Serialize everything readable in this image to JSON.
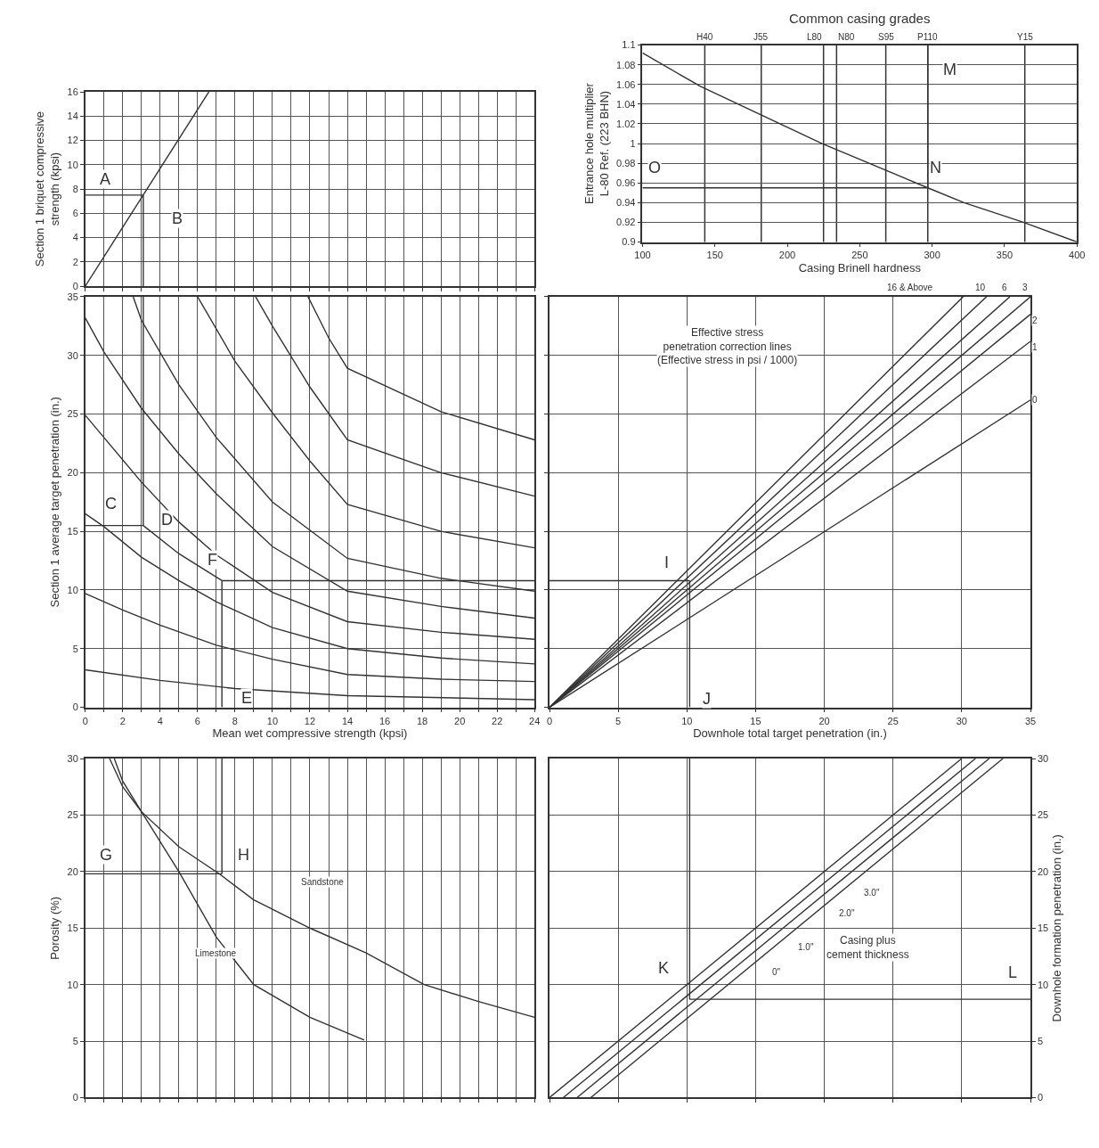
{
  "chart_data": [
    {
      "type": "line",
      "ylabel": "Section 1 briquet compressive\nstrength (kpsi)",
      "xlim": [
        0,
        24
      ],
      "ylim": [
        0,
        16
      ],
      "xticks": [
        0,
        {
          "value": 1,
          "label": null
        },
        2,
        {
          "value": 3,
          "label": null
        },
        4,
        {
          "value": 5,
          "label": null
        },
        6,
        {
          "value": 7,
          "label": null
        },
        8,
        {
          "value": 9,
          "label": null
        },
        10,
        {
          "value": 11,
          "label": null
        },
        12,
        {
          "value": 13,
          "label": null
        },
        14,
        {
          "value": 15,
          "label": null
        },
        16,
        {
          "value": 17,
          "label": null
        },
        18,
        {
          "value": 19,
          "label": null
        },
        20,
        {
          "value": 21,
          "label": null
        },
        22,
        {
          "value": 23,
          "label": null
        },
        24
      ],
      "yticks": [
        0,
        2,
        4,
        6,
        8,
        10,
        12,
        14,
        16
      ],
      "tick_labels": "y",
      "grid": true,
      "series": [
        {
          "color": "#333333",
          "x": [
            0,
            6.6
          ],
          "values": [
            0,
            16
          ]
        },
        {
          "color": "#333333",
          "x": [
            0,
            3.1,
            null,
            3.1,
            3.1
          ],
          "values": [
            7.5,
            7.5,
            null,
            7.5,
            0
          ]
        }
      ],
      "annotations": [
        "A",
        "B"
      ]
    },
    {
      "type": "line",
      "title": "Common casing grades",
      "xlabel": "Casing Brinell hardness",
      "ylabel": "Entrance hole multiplier\nL-80 Ref. (223 BHN)",
      "xlim": [
        100,
        400
      ],
      "ylim": [
        0.9,
        1.1
      ],
      "xticks": [
        100,
        150,
        200,
        250,
        300,
        350,
        400
      ],
      "yticks": [
        0.9,
        0.92,
        0.94,
        0.96,
        0.98,
        1,
        1.02,
        1.04,
        1.06,
        1.08,
        1.1
      ],
      "ref_lines": [
        {
          "axis": "x",
          "value": 143,
          "label": "H40"
        },
        {
          "axis": "x",
          "value": 182,
          "label": "J55"
        },
        {
          "axis": "x",
          "value": 225,
          "label": "L80"
        },
        {
          "axis": "x",
          "value": 234,
          "label": "N80"
        },
        {
          "axis": "x",
          "value": 268,
          "label": "S95"
        },
        {
          "axis": "x",
          "value": 297,
          "label": "P110"
        },
        {
          "axis": "x",
          "value": 364,
          "label": "Y15"
        }
      ],
      "grid": "y",
      "series": [
        {
          "color": "#333333",
          "x": [
            100,
            140,
            224,
            297,
            322,
            363,
            400
          ],
          "values": [
            1.092,
            1.058,
            1.0,
            0.955,
            0.94,
            0.92,
            0.9
          ]
        },
        {
          "color": "#333333",
          "x": [
            297,
            297,
            null,
            297,
            100
          ],
          "values": [
            1.1,
            0.955,
            null,
            0.955,
            0.955
          ]
        }
      ],
      "annotations": [
        "M",
        "N",
        "O"
      ]
    },
    {
      "type": "line",
      "xlabel": "Mean wet compressive strength (kpsi)",
      "ylabel": "Section 1 average target penetration (in.)",
      "xlim": [
        0,
        24
      ],
      "ylim": [
        0,
        35
      ],
      "xticks": [
        0,
        {
          "value": 1,
          "label": null
        },
        2,
        {
          "value": 3,
          "label": null
        },
        4,
        {
          "value": 5,
          "label": null
        },
        6,
        {
          "value": 7,
          "label": null
        },
        8,
        {
          "value": 9,
          "label": null
        },
        10,
        {
          "value": 11,
          "label": null
        },
        12,
        {
          "value": 13,
          "label": null
        },
        14,
        {
          "value": 15,
          "label": null
        },
        16,
        {
          "value": 17,
          "label": null
        },
        18,
        {
          "value": 19,
          "label": null
        },
        20,
        {
          "value": 21,
          "label": null
        },
        22,
        {
          "value": 23,
          "label": null
        },
        24
      ],
      "yticks": [
        0,
        5,
        10,
        15,
        20,
        25,
        30,
        35
      ],
      "grid": true,
      "series": [
        {
          "color": "#333333",
          "x": [
            11.9,
            13,
            14,
            19,
            24
          ],
          "values": [
            35,
            31.5,
            28.9,
            25.2,
            22.8
          ]
        },
        {
          "color": "#333333",
          "x": [
            9.1,
            10,
            12,
            14,
            19,
            24
          ],
          "values": [
            35,
            32.5,
            27.3,
            22.8,
            20,
            18.0
          ]
        },
        {
          "color": "#333333",
          "x": [
            6,
            8,
            10,
            12,
            14,
            19,
            24
          ],
          "values": [
            35,
            29.5,
            25.1,
            21,
            17.3,
            15,
            13.6
          ]
        },
        {
          "color": "#333333",
          "x": [
            2.56,
            3,
            5,
            7,
            10,
            14,
            19,
            24
          ],
          "values": [
            35,
            33,
            27.5,
            23,
            17.5,
            12.7,
            11,
            9.9
          ]
        },
        {
          "color": "#333333",
          "x": [
            0,
            1,
            3,
            5,
            7,
            10,
            14,
            19,
            24
          ],
          "values": [
            33.2,
            30.3,
            25.5,
            21.6,
            18.2,
            13.7,
            9.9,
            8.6,
            7.6
          ]
        },
        {
          "color": "#333333",
          "x": [
            0,
            1,
            3,
            5,
            7,
            10,
            14,
            19,
            24
          ],
          "values": [
            24.9,
            23,
            19.2,
            15.8,
            13,
            9.8,
            7.3,
            6.4,
            5.8
          ]
        },
        {
          "color": "#333333",
          "x": [
            0,
            1,
            3,
            5,
            7,
            10,
            14,
            19,
            24
          ],
          "values": [
            16.5,
            15.4,
            12.8,
            10.8,
            9,
            6.8,
            5.0,
            4.2,
            3.7
          ]
        },
        {
          "color": "#333333",
          "x": [
            0,
            2,
            4,
            7,
            10,
            14,
            19,
            24
          ],
          "values": [
            9.7,
            8.3,
            7,
            5.3,
            4.1,
            2.8,
            2.4,
            2.2
          ]
        },
        {
          "color": "#333333",
          "x": [
            0,
            4,
            8,
            14,
            24
          ],
          "values": [
            3.2,
            2.3,
            1.6,
            1.0,
            0.65
          ]
        },
        {
          "color": "#333333",
          "x": [
            3.1,
            3.1,
            null,
            0,
            3.1,
            null,
            3.1,
            5,
            7.3,
            null,
            7.3,
            7.3,
            null,
            7.3,
            24
          ],
          "values": [
            35,
            15.5,
            null,
            15.5,
            15.5,
            null,
            15.5,
            13.1,
            10.8,
            null,
            0,
            10.8,
            null,
            10.8,
            10.8
          ]
        }
      ],
      "annotations": [
        "C",
        "D",
        "F",
        "E"
      ]
    },
    {
      "type": "line",
      "xlabel": "Downhole total target penetration (in.)",
      "xlim": [
        0,
        35
      ],
      "ylim": [
        0,
        35
      ],
      "xticks": [
        0,
        5,
        10,
        15,
        20,
        25,
        30,
        35
      ],
      "yticks": [
        0,
        5,
        10,
        15,
        20,
        25,
        30,
        35
      ],
      "tick_labels": "x",
      "grid": true,
      "series": [
        {
          "color": "#333333",
          "x": [
            0,
            35
          ],
          "values": [
            0,
            26.2
          ]
        },
        {
          "color": "#333333",
          "x": [
            0,
            35
          ],
          "values": [
            0,
            31.2
          ]
        },
        {
          "color": "#333333",
          "x": [
            0,
            35
          ],
          "values": [
            0,
            33.5
          ]
        },
        {
          "color": "#333333",
          "x": [
            0,
            35
          ],
          "values": [
            0,
            35
          ]
        },
        {
          "color": "#333333",
          "x": [
            0,
            33.5
          ],
          "values": [
            0,
            35
          ]
        },
        {
          "color": "#333333",
          "x": [
            0,
            31.8
          ],
          "values": [
            0,
            35
          ]
        },
        {
          "color": "#333333",
          "x": [
            0,
            30.1
          ],
          "values": [
            0,
            35
          ]
        },
        {
          "color": "#333333",
          "x": [
            0,
            10.2,
            null,
            10.2,
            10.2
          ],
          "values": [
            10.8,
            10.8,
            null,
            10.8,
            0
          ]
        }
      ],
      "annotations": [
        "Effective stress\npenetration correction lines\n(Effective stress in psi / 1000)",
        "16 & Above",
        "10",
        "6",
        "3",
        "2",
        "1",
        "0",
        "I",
        "J"
      ]
    },
    {
      "type": "line",
      "ylabel": "Porosity (%)",
      "xlim": [
        0,
        24
      ],
      "ylim": [
        0,
        30
      ],
      "xticks": [
        0,
        {
          "value": 1,
          "label": null
        },
        2,
        {
          "value": 3,
          "label": null
        },
        4,
        {
          "value": 5,
          "label": null
        },
        6,
        {
          "value": 7,
          "label": null
        },
        8,
        {
          "value": 9,
          "label": null
        },
        10,
        {
          "value": 11,
          "label": null
        },
        12,
        {
          "value": 13,
          "label": null
        },
        14,
        {
          "value": 15,
          "label": null
        },
        16,
        {
          "value": 17,
          "label": null
        },
        18,
        {
          "value": 19,
          "label": null
        },
        20,
        {
          "value": 21,
          "label": null
        },
        22,
        {
          "value": 23,
          "label": null
        },
        24
      ],
      "yticks": [
        0,
        5,
        10,
        15,
        20,
        25,
        30
      ],
      "tick_labels": "y",
      "grid": true,
      "series": [
        {
          "color": "#333333",
          "x": [
            1.3,
            2,
            3,
            5,
            7,
            9,
            12,
            14.9
          ],
          "values": [
            30,
            27.5,
            25.3,
            20,
            14.2,
            10,
            7.1,
            5.1
          ]
        },
        {
          "color": "#333333",
          "x": [
            1.55,
            2,
            3,
            5,
            7.2,
            9,
            12,
            15,
            18.1,
            21,
            24
          ],
          "values": [
            30,
            28,
            25.3,
            22.2,
            19.75,
            17.5,
            15,
            12.8,
            10,
            8.5,
            7.1
          ]
        },
        {
          "color": "#333333",
          "x": [
            7.3,
            7.3,
            null,
            0,
            7.3
          ],
          "values": [
            30,
            19.8,
            null,
            19.8,
            19.8
          ]
        }
      ],
      "annotations": [
        "Limestone",
        "Sandstone",
        "G",
        "H"
      ]
    },
    {
      "type": "line",
      "ylabel": "Downhole formation penetration (in.)",
      "xlim": [
        0,
        35
      ],
      "ylim": [
        0,
        30
      ],
      "xticks": [
        0,
        5,
        10,
        15,
        20,
        25,
        30,
        35
      ],
      "yticks": [
        0,
        5,
        10,
        15,
        20,
        25,
        30
      ],
      "tick_labels": "y",
      "grid": true,
      "series": [
        {
          "color": "#333333",
          "x": [
            0,
            30
          ],
          "values": [
            0,
            30
          ]
        },
        {
          "color": "#333333",
          "x": [
            1,
            31
          ],
          "values": [
            0,
            30
          ]
        },
        {
          "color": "#333333",
          "x": [
            2,
            32
          ],
          "values": [
            0,
            30
          ]
        },
        {
          "color": "#333333",
          "x": [
            3,
            33
          ],
          "values": [
            0,
            30
          ]
        },
        {
          "color": "#333333",
          "x": [
            10.2,
            10.2,
            null,
            10.2,
            35
          ],
          "values": [
            30,
            8.7,
            null,
            8.7,
            8.7
          ]
        }
      ],
      "annotations": [
        "0\"",
        "1.0\"",
        "2.0\"",
        "3.0\"",
        "Casing plus\ncement thickness",
        "K",
        "L"
      ]
    }
  ]
}
